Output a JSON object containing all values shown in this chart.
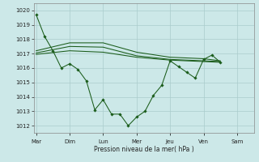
{
  "background_color": "#cce8e8",
  "grid_color": "#aacccc",
  "line_color": "#1a5c1a",
  "xlabel": "Pression niveau de la mer( hPa )",
  "ylim": [
    1011.5,
    1020.5
  ],
  "yticks": [
    1012,
    1013,
    1014,
    1015,
    1016,
    1017,
    1018,
    1019,
    1020
  ],
  "days": [
    "Mar",
    "Dim",
    "Lun",
    "Mer",
    "Jeu",
    "Ven",
    "Sam"
  ],
  "day_positions": [
    0,
    4,
    8,
    12,
    16,
    20,
    24
  ],
  "xlim": [
    -0.3,
    26
  ],
  "line_main": [
    [
      0,
      1019.7
    ],
    [
      1,
      1018.2
    ],
    [
      2,
      1017.2
    ],
    [
      3,
      1016.0
    ],
    [
      4,
      1016.3
    ],
    [
      5,
      1015.9
    ],
    [
      6,
      1015.1
    ],
    [
      7,
      1013.1
    ],
    [
      8,
      1013.8
    ],
    [
      9,
      1012.8
    ],
    [
      10,
      1012.8
    ],
    [
      11,
      1012.0
    ],
    [
      12,
      1012.6
    ],
    [
      13,
      1013.0
    ],
    [
      14,
      1014.1
    ],
    [
      15,
      1014.8
    ],
    [
      16,
      1016.5
    ],
    [
      17,
      1016.1
    ],
    [
      18,
      1015.7
    ],
    [
      19,
      1015.3
    ],
    [
      20,
      1016.6
    ],
    [
      21,
      1016.9
    ],
    [
      22,
      1016.4
    ]
  ],
  "line_smooth1": [
    [
      0,
      1017.2
    ],
    [
      4,
      1017.75
    ],
    [
      8,
      1017.75
    ],
    [
      12,
      1017.1
    ],
    [
      16,
      1016.75
    ],
    [
      20,
      1016.65
    ],
    [
      22,
      1016.5
    ]
  ],
  "line_smooth2": [
    [
      0,
      1017.05
    ],
    [
      4,
      1017.5
    ],
    [
      8,
      1017.45
    ],
    [
      12,
      1016.85
    ],
    [
      16,
      1016.6
    ],
    [
      20,
      1016.5
    ],
    [
      22,
      1016.45
    ]
  ],
  "line_smooth3": [
    [
      0,
      1016.95
    ],
    [
      4,
      1017.2
    ],
    [
      8,
      1017.1
    ],
    [
      12,
      1016.75
    ],
    [
      16,
      1016.55
    ],
    [
      20,
      1016.45
    ],
    [
      22,
      1016.4
    ]
  ]
}
